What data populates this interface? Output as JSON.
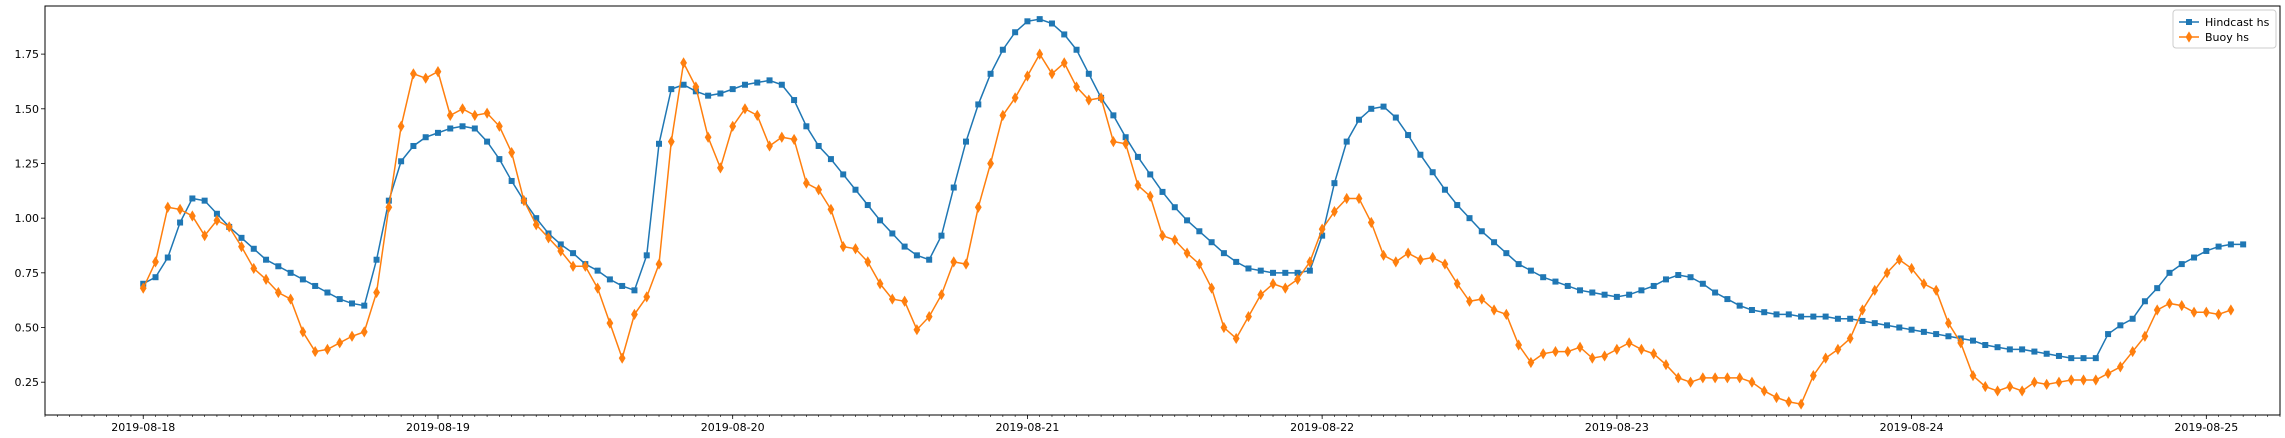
{
  "chart_data": {
    "type": "line",
    "title": "",
    "xlabel": "",
    "ylabel": "",
    "x_start": "2019-08-18",
    "x_step_hours": 1,
    "xlim": [
      "2019-08-17T16:00",
      "2019-08-25T06:00"
    ],
    "ylim": [
      0.1,
      1.97
    ],
    "x_ticks": [
      {
        "date": "2019-08-18",
        "label": "2019-08-18"
      },
      {
        "date": "2019-08-19",
        "label": "2019-08-19"
      },
      {
        "date": "2019-08-20",
        "label": "2019-08-20"
      },
      {
        "date": "2019-08-21",
        "label": "2019-08-21"
      },
      {
        "date": "2019-08-22",
        "label": "2019-08-22"
      },
      {
        "date": "2019-08-23",
        "label": "2019-08-23"
      },
      {
        "date": "2019-08-24",
        "label": "2019-08-24"
      },
      {
        "date": "2019-08-25",
        "label": "2019-08-25"
      }
    ],
    "y_ticks": [
      {
        "value": 0.25,
        "label": "0.25"
      },
      {
        "value": 0.5,
        "label": "0.50"
      },
      {
        "value": 0.75,
        "label": "0.75"
      },
      {
        "value": 1.0,
        "label": "1.00"
      },
      {
        "value": 1.25,
        "label": "1.25"
      },
      {
        "value": 1.5,
        "label": "1.50"
      },
      {
        "value": 1.75,
        "label": "1.75"
      }
    ],
    "grid": false,
    "legend_position": "top-right",
    "series": [
      {
        "name": "Hindcast hs",
        "color": "#1f77b4",
        "marker": "square",
        "values": [
          0.7,
          0.73,
          0.82,
          0.98,
          1.09,
          1.08,
          1.02,
          0.96,
          0.91,
          0.86,
          0.81,
          0.78,
          0.75,
          0.72,
          0.69,
          0.66,
          0.63,
          0.61,
          0.6,
          0.81,
          1.08,
          1.26,
          1.33,
          1.37,
          1.39,
          1.41,
          1.42,
          1.41,
          1.35,
          1.27,
          1.17,
          1.08,
          1.0,
          0.93,
          0.88,
          0.84,
          0.79,
          0.76,
          0.72,
          0.69,
          0.67,
          0.83,
          1.34,
          1.59,
          1.61,
          1.58,
          1.56,
          1.57,
          1.59,
          1.61,
          1.62,
          1.63,
          1.61,
          1.54,
          1.42,
          1.33,
          1.27,
          1.2,
          1.13,
          1.06,
          0.99,
          0.93,
          0.87,
          0.83,
          0.81,
          0.92,
          1.14,
          1.35,
          1.52,
          1.66,
          1.77,
          1.85,
          1.9,
          1.91,
          1.89,
          1.84,
          1.77,
          1.66,
          1.55,
          1.47,
          1.37,
          1.28,
          1.2,
          1.12,
          1.05,
          0.99,
          0.94,
          0.89,
          0.84,
          0.8,
          0.77,
          0.76,
          0.75,
          0.75,
          0.75,
          0.76,
          0.92,
          1.16,
          1.35,
          1.45,
          1.5,
          1.51,
          1.46,
          1.38,
          1.29,
          1.21,
          1.13,
          1.06,
          1.0,
          0.94,
          0.89,
          0.84,
          0.79,
          0.76,
          0.73,
          0.71,
          0.69,
          0.67,
          0.66,
          0.65,
          0.64,
          0.65,
          0.67,
          0.69,
          0.72,
          0.74,
          0.73,
          0.7,
          0.66,
          0.63,
          0.6,
          0.58,
          0.57,
          0.56,
          0.56,
          0.55,
          0.55,
          0.55,
          0.54,
          0.54,
          0.53,
          0.52,
          0.51,
          0.5,
          0.49,
          0.48,
          0.47,
          0.46,
          0.45,
          0.44,
          0.42,
          0.41,
          0.4,
          0.4,
          0.39,
          0.38,
          0.37,
          0.36,
          0.36,
          0.36,
          0.47,
          0.51,
          0.54,
          0.62,
          0.68,
          0.75,
          0.79,
          0.82,
          0.85,
          0.87,
          0.88,
          0.88
        ]
      },
      {
        "name": "Buoy hs",
        "color": "#ff7f0e",
        "marker": "diamond",
        "values": [
          0.68,
          0.8,
          1.05,
          1.04,
          1.01,
          0.92,
          0.99,
          0.96,
          0.87,
          0.77,
          0.72,
          0.66,
          0.63,
          0.48,
          0.39,
          0.4,
          0.43,
          0.46,
          0.48,
          0.66,
          1.05,
          1.42,
          1.66,
          1.64,
          1.67,
          1.47,
          1.5,
          1.47,
          1.48,
          1.42,
          1.3,
          1.08,
          0.97,
          0.91,
          0.85,
          0.78,
          0.78,
          0.68,
          0.52,
          0.36,
          0.56,
          0.64,
          0.79,
          1.35,
          1.71,
          1.6,
          1.37,
          1.23,
          1.42,
          1.5,
          1.47,
          1.33,
          1.37,
          1.36,
          1.16,
          1.13,
          1.04,
          0.87,
          0.86,
          0.8,
          0.7,
          0.63,
          0.62,
          0.49,
          0.55,
          0.65,
          0.8,
          0.79,
          1.05,
          1.25,
          1.47,
          1.55,
          1.65,
          1.75,
          1.66,
          1.71,
          1.6,
          1.54,
          1.55,
          1.35,
          1.34,
          1.15,
          1.1,
          0.92,
          0.9,
          0.84,
          0.79,
          0.68,
          0.5,
          0.45,
          0.55,
          0.65,
          0.7,
          0.68,
          0.72,
          0.8,
          0.95,
          1.03,
          1.09,
          1.09,
          0.98,
          0.83,
          0.8,
          0.84,
          0.81,
          0.82,
          0.79,
          0.7,
          0.62,
          0.63,
          0.58,
          0.56,
          0.42,
          0.34,
          0.38,
          0.39,
          0.39,
          0.41,
          0.36,
          0.37,
          0.4,
          0.43,
          0.4,
          0.38,
          0.33,
          0.27,
          0.25,
          0.27,
          0.27,
          0.27,
          0.27,
          0.25,
          0.21,
          0.18,
          0.16,
          0.15,
          0.28,
          0.36,
          0.4,
          0.45,
          0.58,
          0.67,
          0.75,
          0.81,
          0.77,
          0.7,
          0.67,
          0.52,
          0.43,
          0.28,
          0.23,
          0.21,
          0.23,
          0.21,
          0.25,
          0.24,
          0.25,
          0.26,
          0.26,
          0.26,
          0.29,
          0.32,
          0.39,
          0.46,
          0.58,
          0.61,
          0.6,
          0.57,
          0.57,
          0.56,
          0.58
        ]
      }
    ]
  }
}
